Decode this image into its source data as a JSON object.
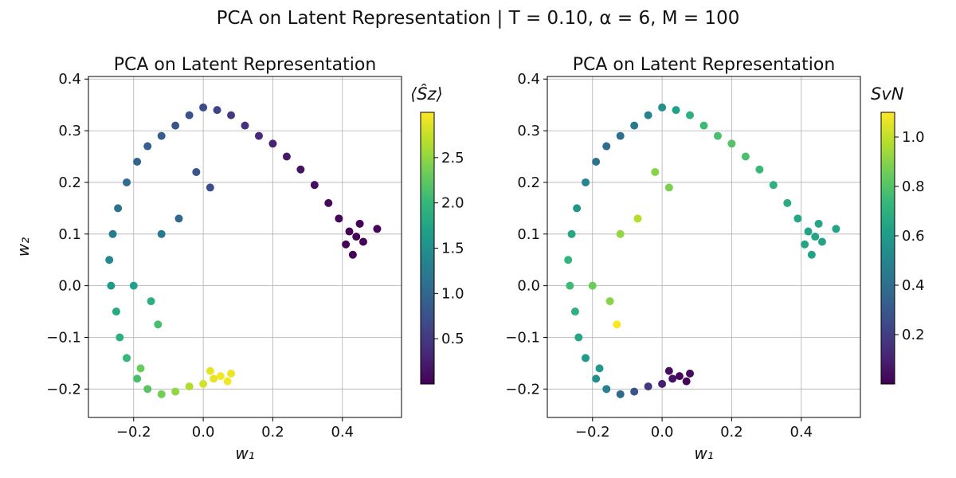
{
  "figure": {
    "suptitle": "PCA on Latent Representation | T = 0.10, α = 6, M = 100"
  },
  "chart_data": [
    {
      "type": "scatter",
      "title": "PCA on Latent Representation",
      "xlabel": "w₁",
      "ylabel": "w₂",
      "xlim": [
        -0.33,
        0.57
      ],
      "ylim": [
        -0.255,
        0.405
      ],
      "xticks": [
        "−0.2",
        "0.0",
        "0.2",
        "0.4"
      ],
      "xtick_values": [
        -0.2,
        0.0,
        0.2,
        0.4
      ],
      "yticks": [
        "−0.2",
        "−0.1",
        "0.0",
        "0.1",
        "0.2",
        "0.3",
        "0.4"
      ],
      "ytick_values": [
        -0.2,
        -0.1,
        0.0,
        0.1,
        0.2,
        0.3,
        0.4
      ],
      "grid": true,
      "colormap": "viridis",
      "colorbar": {
        "label": "⟨Ŝz⟩",
        "range": [
          0.0,
          3.0
        ],
        "ticks": [
          "0.5",
          "1.0",
          "1.5",
          "2.0",
          "2.5"
        ],
        "tick_values": [
          0.5,
          1.0,
          1.5,
          2.0,
          2.5
        ]
      },
      "color_variable": "sz",
      "marker_color": "#440154"
    },
    {
      "type": "scatter",
      "title": "PCA on Latent Representation",
      "xlabel": "w₁",
      "ylabel": "",
      "xlim": [
        -0.33,
        0.57
      ],
      "ylim": [
        -0.255,
        0.405
      ],
      "xticks": [
        "−0.2",
        "0.0",
        "0.2",
        "0.4"
      ],
      "xtick_values": [
        -0.2,
        0.0,
        0.2,
        0.4
      ],
      "yticks": [
        "−0.2",
        "−0.1",
        "0.0",
        "0.1",
        "0.2",
        "0.3",
        "0.4"
      ],
      "ytick_values": [
        -0.2,
        -0.1,
        0.0,
        0.1,
        0.2,
        0.3,
        0.4
      ],
      "grid": true,
      "colormap": "viridis",
      "colorbar": {
        "label": "SvN",
        "range": [
          0.0,
          1.1
        ],
        "ticks": [
          "0.2",
          "0.4",
          "0.6",
          "0.8",
          "1.0"
        ],
        "tick_values": [
          0.2,
          0.4,
          0.6,
          0.8,
          1.0
        ]
      },
      "color_variable": "svn",
      "marker_color": "#21918c"
    }
  ],
  "points": [
    {
      "w1": 0.05,
      "w2": -0.175,
      "sz": 2.95,
      "svn": 0.02
    },
    {
      "w1": 0.08,
      "w2": -0.17,
      "sz": 2.92,
      "svn": 0.03
    },
    {
      "w1": 0.03,
      "w2": -0.18,
      "sz": 2.9,
      "svn": 0.05
    },
    {
      "w1": 0.0,
      "w2": -0.19,
      "sz": 2.8,
      "svn": 0.1
    },
    {
      "w1": -0.04,
      "w2": -0.195,
      "sz": 2.65,
      "svn": 0.18
    },
    {
      "w1": -0.08,
      "w2": -0.205,
      "sz": 2.5,
      "svn": 0.28
    },
    {
      "w1": -0.12,
      "w2": -0.21,
      "sz": 2.35,
      "svn": 0.38
    },
    {
      "w1": -0.16,
      "w2": -0.2,
      "sz": 2.2,
      "svn": 0.48
    },
    {
      "w1": -0.19,
      "w2": -0.18,
      "sz": 2.1,
      "svn": 0.55
    },
    {
      "w1": -0.22,
      "w2": -0.14,
      "sz": 2.0,
      "svn": 0.6
    },
    {
      "w1": -0.24,
      "w2": -0.1,
      "sz": 1.9,
      "svn": 0.65
    },
    {
      "w1": -0.25,
      "w2": -0.05,
      "sz": 1.8,
      "svn": 0.7
    },
    {
      "w1": -0.265,
      "w2": 0.0,
      "sz": 1.6,
      "svn": 0.75
    },
    {
      "w1": -0.27,
      "w2": 0.05,
      "sz": 1.4,
      "svn": 0.72
    },
    {
      "w1": -0.26,
      "w2": 0.1,
      "sz": 1.25,
      "svn": 0.65
    },
    {
      "w1": -0.245,
      "w2": 0.15,
      "sz": 1.15,
      "svn": 0.58
    },
    {
      "w1": -0.22,
      "w2": 0.2,
      "sz": 1.05,
      "svn": 0.5
    },
    {
      "w1": -0.19,
      "w2": 0.24,
      "sz": 0.95,
      "svn": 0.42
    },
    {
      "w1": -0.16,
      "w2": 0.27,
      "sz": 0.9,
      "svn": 0.38
    },
    {
      "w1": -0.12,
      "w2": 0.29,
      "sz": 0.85,
      "svn": 0.4
    },
    {
      "w1": -0.08,
      "w2": 0.31,
      "sz": 0.8,
      "svn": 0.45
    },
    {
      "w1": -0.04,
      "w2": 0.33,
      "sz": 0.75,
      "svn": 0.5
    },
    {
      "w1": 0.0,
      "w2": 0.345,
      "sz": 0.7,
      "svn": 0.55
    },
    {
      "w1": 0.04,
      "w2": 0.34,
      "sz": 0.6,
      "svn": 0.62
    },
    {
      "w1": 0.08,
      "w2": 0.33,
      "sz": 0.5,
      "svn": 0.7
    },
    {
      "w1": 0.12,
      "w2": 0.31,
      "sz": 0.42,
      "svn": 0.75
    },
    {
      "w1": 0.16,
      "w2": 0.29,
      "sz": 0.35,
      "svn": 0.78
    },
    {
      "w1": 0.2,
      "w2": 0.275,
      "sz": 0.28,
      "svn": 0.8
    },
    {
      "w1": 0.24,
      "w2": 0.25,
      "sz": 0.22,
      "svn": 0.78
    },
    {
      "w1": 0.28,
      "w2": 0.225,
      "sz": 0.16,
      "svn": 0.74
    },
    {
      "w1": 0.32,
      "w2": 0.195,
      "sz": 0.11,
      "svn": 0.7
    },
    {
      "w1": 0.36,
      "w2": 0.16,
      "sz": 0.07,
      "svn": 0.67
    },
    {
      "w1": 0.39,
      "w2": 0.13,
      "sz": 0.04,
      "svn": 0.65
    },
    {
      "w1": 0.42,
      "w2": 0.105,
      "sz": 0.02,
      "svn": 0.64
    },
    {
      "w1": 0.44,
      "w2": 0.095,
      "sz": 0.02,
      "svn": 0.64
    },
    {
      "w1": 0.46,
      "w2": 0.085,
      "sz": 0.02,
      "svn": 0.63
    },
    {
      "w1": 0.41,
      "w2": 0.08,
      "sz": 0.02,
      "svn": 0.64
    },
    {
      "w1": 0.45,
      "w2": 0.12,
      "sz": 0.02,
      "svn": 0.65
    },
    {
      "w1": 0.5,
      "w2": 0.11,
      "sz": 0.02,
      "svn": 0.64
    },
    {
      "w1": 0.43,
      "w2": 0.06,
      "sz": 0.02,
      "svn": 0.63
    },
    {
      "w1": -0.02,
      "w2": 0.22,
      "sz": 0.75,
      "svn": 0.9
    },
    {
      "w1": 0.02,
      "w2": 0.19,
      "sz": 0.7,
      "svn": 0.88
    },
    {
      "w1": -0.07,
      "w2": 0.13,
      "sz": 1.0,
      "svn": 0.98
    },
    {
      "w1": -0.12,
      "w2": 0.1,
      "sz": 1.2,
      "svn": 0.92
    },
    {
      "w1": -0.2,
      "w2": 0.0,
      "sz": 1.7,
      "svn": 0.85
    },
    {
      "w1": -0.13,
      "w2": -0.075,
      "sz": 2.1,
      "svn": 1.1
    },
    {
      "w1": -0.15,
      "w2": -0.03,
      "sz": 1.9,
      "svn": 0.9
    },
    {
      "w1": -0.18,
      "w2": -0.16,
      "sz": 2.3,
      "svn": 0.6
    },
    {
      "w1": 0.07,
      "w2": -0.185,
      "sz": 2.95,
      "svn": 0.02
    },
    {
      "w1": 0.02,
      "w2": -0.165,
      "sz": 2.9,
      "svn": 0.04
    }
  ]
}
